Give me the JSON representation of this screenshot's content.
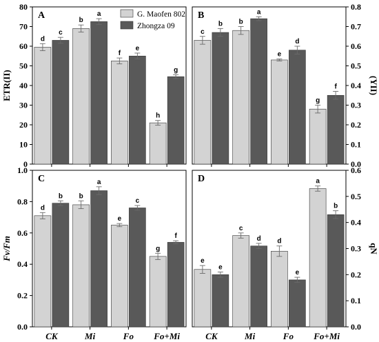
{
  "legend": [
    "G. Maofen 802",
    "Zhongza 09"
  ],
  "colors": {
    "series0": "#d3d3d3",
    "series1": "#595959",
    "axis": "#000000",
    "error": "#6a6a6a"
  },
  "chart_data": [
    {
      "panel": "A",
      "type": "bar",
      "categories": [
        "CK",
        "Mi",
        "Fo",
        "Fo+Mi"
      ],
      "ylabel": "ETR(II)",
      "ylim": [
        0,
        80
      ],
      "yticks": [
        0,
        10,
        20,
        30,
        40,
        50,
        60,
        70,
        80
      ],
      "yaxis_side": "left",
      "show_legend": true,
      "series": [
        {
          "name": "G. Maofen 802",
          "values": [
            59.5,
            69,
            52.5,
            21
          ],
          "errors": [
            1.8,
            1.8,
            1.5,
            1.2
          ],
          "letters": [
            "d",
            "b",
            "f",
            "h"
          ]
        },
        {
          "name": "Zhongza 09",
          "values": [
            63,
            72.5,
            55,
            44.5
          ],
          "errors": [
            1.5,
            1.5,
            1.5,
            1.0
          ],
          "letters": [
            "c",
            "a",
            "e",
            "g"
          ]
        }
      ]
    },
    {
      "panel": "B",
      "type": "bar",
      "categories": [
        "CK",
        "Mi",
        "Fo",
        "Fo+Mi"
      ],
      "ylabel": "(YII)",
      "ylim": [
        0,
        0.8
      ],
      "yticks": [
        0.0,
        0.1,
        0.2,
        0.3,
        0.4,
        0.5,
        0.6,
        0.7,
        0.8
      ],
      "yaxis_side": "right",
      "show_legend": false,
      "series": [
        {
          "name": "G. Maofen 802",
          "values": [
            0.63,
            0.68,
            0.53,
            0.28
          ],
          "errors": [
            0.02,
            0.02,
            0.005,
            0.02
          ],
          "letters": [
            "c",
            "b",
            "e",
            "g"
          ]
        },
        {
          "name": "Zhongza 09",
          "values": [
            0.67,
            0.74,
            0.58,
            0.35
          ],
          "errors": [
            0.02,
            0.01,
            0.02,
            0.02
          ],
          "letters": [
            "b",
            "a",
            "d",
            "f"
          ]
        }
      ]
    },
    {
      "panel": "C",
      "type": "bar",
      "categories": [
        "CK",
        "Mi",
        "Fo",
        "Fo+Mi"
      ],
      "ylabel": "Fv/Fm",
      "ylim": [
        0,
        1.0
      ],
      "yticks": [
        0.0,
        0.2,
        0.4,
        0.6,
        0.8,
        1.0
      ],
      "yaxis_side": "left",
      "show_legend": false,
      "series": [
        {
          "name": "G. Maofen 802",
          "values": [
            0.71,
            0.78,
            0.65,
            0.45
          ],
          "errors": [
            0.02,
            0.025,
            0.01,
            0.02
          ],
          "letters": [
            "d",
            "b",
            "e",
            "g"
          ]
        },
        {
          "name": "Zhongza 09",
          "values": [
            0.79,
            0.87,
            0.76,
            0.54
          ],
          "errors": [
            0.015,
            0.025,
            0.015,
            0.01
          ],
          "letters": [
            "b",
            "a",
            "c",
            "f"
          ]
        }
      ]
    },
    {
      "panel": "D",
      "type": "bar",
      "categories": [
        "CK",
        "Mi",
        "Fo",
        "Fo+Mi"
      ],
      "ylabel": "qN",
      "ylim": [
        0,
        0.6
      ],
      "yticks": [
        0.0,
        0.1,
        0.2,
        0.3,
        0.4,
        0.5,
        0.6
      ],
      "yaxis_side": "right",
      "show_legend": false,
      "series": [
        {
          "name": "G. Maofen 802",
          "values": [
            0.22,
            0.35,
            0.29,
            0.53
          ],
          "errors": [
            0.015,
            0.01,
            0.02,
            0.01
          ],
          "letters": [
            "e",
            "c",
            "d",
            "a"
          ]
        },
        {
          "name": "Zhongza 09",
          "values": [
            0.2,
            0.31,
            0.18,
            0.43
          ],
          "errors": [
            0.01,
            0.01,
            0.01,
            0.015
          ],
          "letters": [
            "e",
            "d",
            "e",
            "b"
          ]
        }
      ]
    }
  ]
}
